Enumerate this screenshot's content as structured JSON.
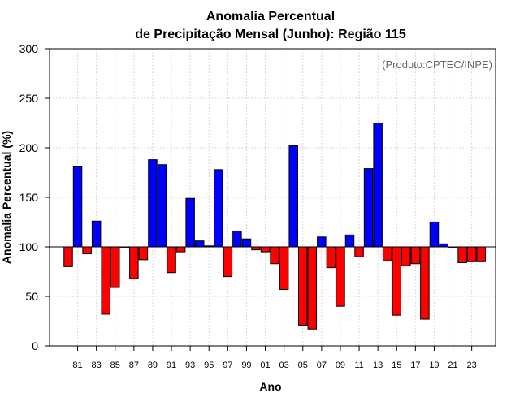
{
  "chart_data": {
    "type": "bar",
    "title": "Anomalia Percentual",
    "subtitle": "de Precipitação Mensal (Junho): Região 115",
    "credit": "(Produto:CPTEC/INPE)",
    "xlabel": "Ano",
    "ylabel": "Anomalia Percentual (%)",
    "ylim": [
      0,
      300
    ],
    "yticks": [
      0,
      50,
      100,
      150,
      200,
      250,
      300
    ],
    "baseline": 100,
    "grid": true,
    "colors": {
      "above": "#0000ff",
      "below": "#ff0000",
      "edge": "#000000",
      "grid": "#d9d9d9"
    },
    "categories": [
      "80",
      "81",
      "82",
      "83",
      "84",
      "85",
      "86",
      "87",
      "88",
      "89",
      "90",
      "91",
      "92",
      "93",
      "94",
      "95",
      "96",
      "97",
      "98",
      "99",
      "00",
      "01",
      "02",
      "03",
      "04",
      "05",
      "06",
      "07",
      "08",
      "09",
      "10",
      "11",
      "12",
      "13",
      "14",
      "15",
      "16",
      "17",
      "18",
      "19",
      "20",
      "21",
      "22",
      "23",
      "24"
    ],
    "xtick_labels": [
      "81",
      "83",
      "85",
      "87",
      "89",
      "91",
      "93",
      "95",
      "97",
      "99",
      "01",
      "03",
      "05",
      "07",
      "09",
      "11",
      "13",
      "15",
      "17",
      "19",
      "21",
      "23"
    ],
    "values": [
      80,
      181,
      93,
      126,
      32,
      59,
      99,
      68,
      87,
      188,
      183,
      74,
      95,
      149,
      106,
      101,
      178,
      70,
      116,
      108,
      97,
      95,
      83,
      57,
      202,
      21,
      17,
      110,
      79,
      40,
      112,
      90,
      179,
      225,
      86,
      31,
      81,
      83,
      27,
      125,
      103,
      99,
      84,
      85,
      85
    ]
  }
}
